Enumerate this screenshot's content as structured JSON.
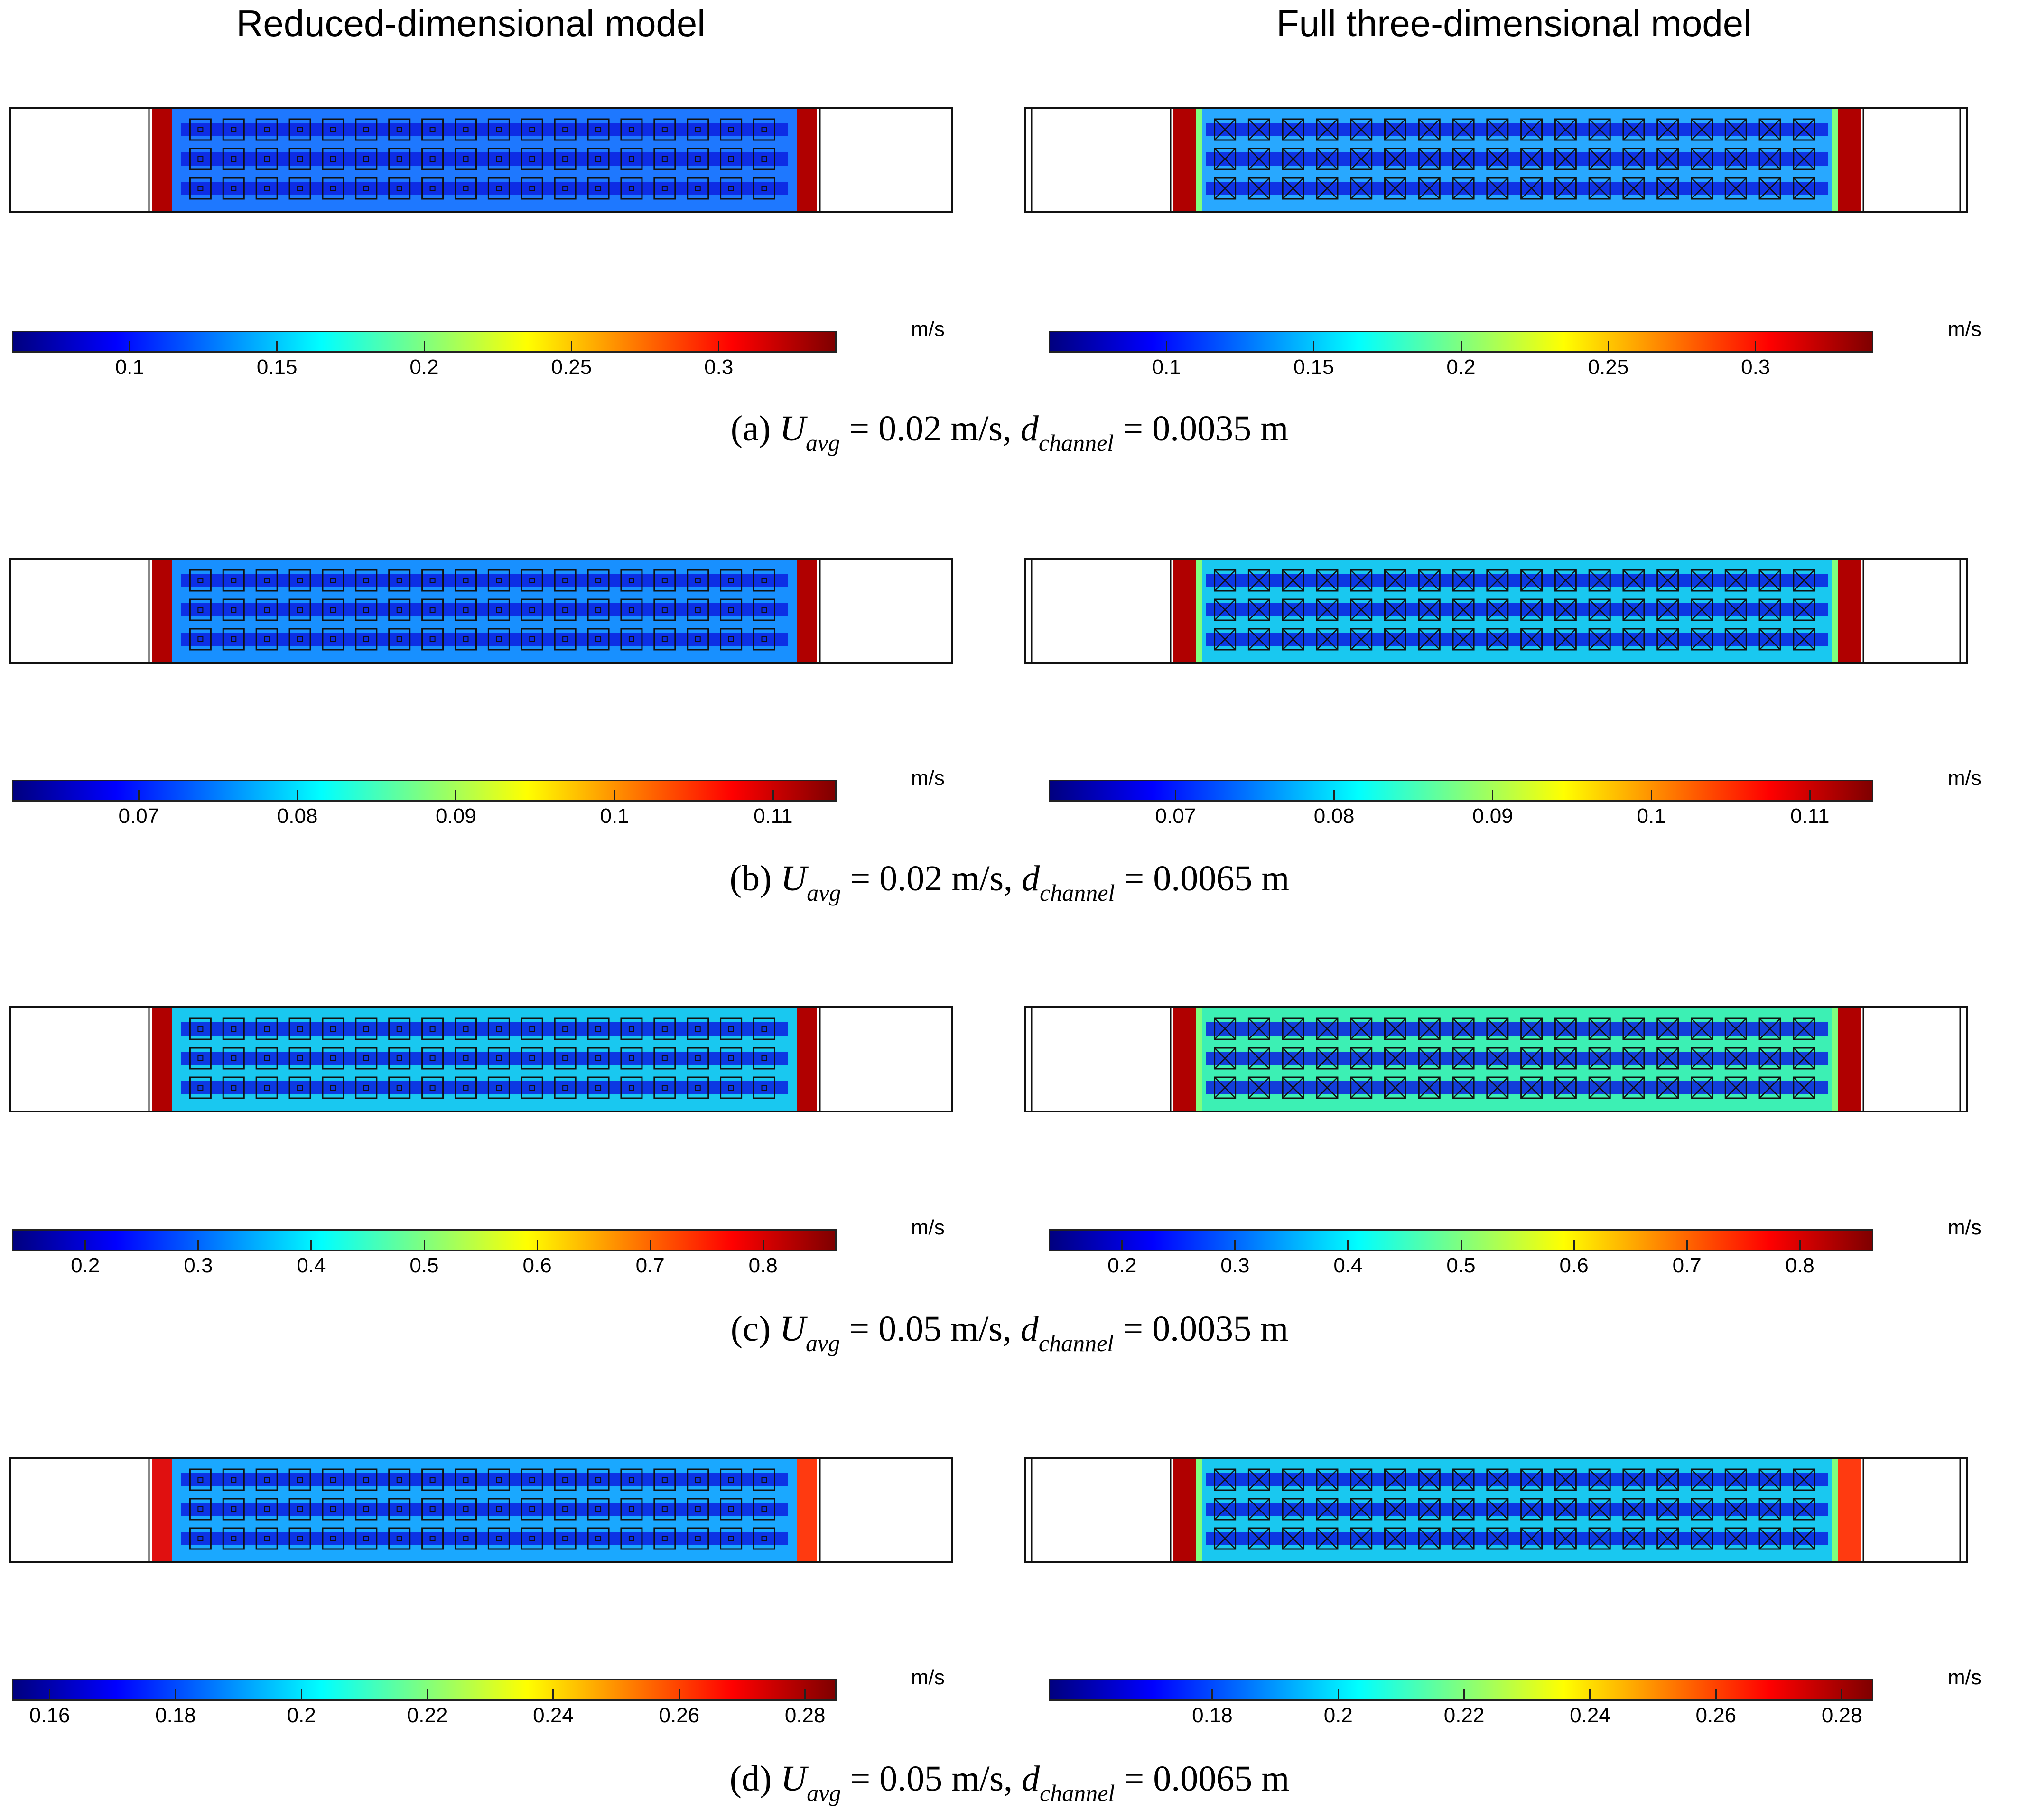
{
  "column_titles": {
    "left": "Reduced-dimensional model",
    "right": "Full three-dimensional model"
  },
  "colorbar_unit": "m/s",
  "panels": [
    {
      "label": "(a)",
      "u_avg": "0.02 m/s",
      "d_channel": "0.0035 m",
      "colorbar_range": [
        0.06,
        0.34
      ],
      "ticks": [
        "0.1",
        "0.15",
        "0.2",
        "0.25",
        "0.3"
      ],
      "tick_values": [
        0.1,
        0.15,
        0.2,
        0.25,
        0.3
      ]
    },
    {
      "label": "(b)",
      "u_avg": "0.02 m/s",
      "d_channel": "0.0065 m",
      "colorbar_range": [
        0.062,
        0.114
      ],
      "ticks": [
        "0.07",
        "0.08",
        "0.09",
        "0.1",
        "0.11"
      ],
      "tick_values": [
        0.07,
        0.08,
        0.09,
        0.1,
        0.11
      ]
    },
    {
      "label": "(c)",
      "u_avg": "0.05 m/s",
      "d_channel": "0.0035 m",
      "colorbar_range": [
        0.135,
        0.865
      ],
      "ticks": [
        "0.2",
        "0.3",
        "0.4",
        "0.5",
        "0.6",
        "0.7",
        "0.8"
      ],
      "tick_values": [
        0.2,
        0.3,
        0.4,
        0.5,
        0.6,
        0.7,
        0.8
      ]
    },
    {
      "label": "(d)",
      "u_avg": "0.05 m/s",
      "d_channel": "0.0065 m",
      "colorbar_range": [
        0.154,
        0.285
      ],
      "ticks_left": [
        "0.16",
        "0.18",
        "0.2",
        "0.22",
        "0.24",
        "0.26",
        "0.28"
      ],
      "tick_values_left": [
        0.16,
        0.18,
        0.2,
        0.22,
        0.24,
        0.26,
        0.28
      ],
      "ticks": [
        "0.18",
        "0.2",
        "0.22",
        "0.24",
        "0.26",
        "0.28"
      ],
      "tick_values": [
        0.18,
        0.2,
        0.22,
        0.24,
        0.26,
        0.28
      ]
    }
  ],
  "grid": {
    "rows": 3,
    "cols": 18
  },
  "colors": {
    "dark_red": "#b00000",
    "deep_blue": "#0a1ee0",
    "mid_blue": "#1e78ff",
    "cyan": "#19c8f0",
    "green_cyan": "#3cf0b4"
  }
}
